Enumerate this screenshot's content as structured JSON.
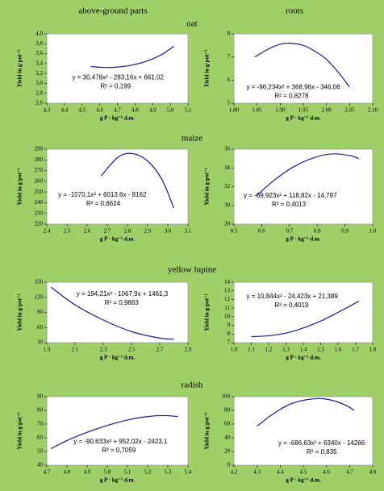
{
  "column_headers": [
    "above-ground parts",
    "roots"
  ],
  "row_labels": [
    "oat",
    "maize",
    "yellow lupine",
    "radish"
  ],
  "chart_data": [
    {
      "type": "line",
      "color": "#1a1a8c",
      "xlabel": "g P · kg⁻¹ d.m.",
      "ylabel": "Yield in g·pot⁻¹",
      "x": [
        4.55,
        4.65,
        4.75,
        4.85,
        4.95,
        5.02
      ],
      "values": [
        3.34,
        3.32,
        3.35,
        3.43,
        3.58,
        3.75
      ],
      "xlim": [
        4.3,
        5.1
      ],
      "ylim": [
        2.6,
        4.0
      ],
      "xticks": [
        {
          "value": 4.3,
          "label": "4,3"
        },
        {
          "value": 4.4,
          "label": "4,4"
        },
        {
          "value": 4.5,
          "label": "4,5"
        },
        {
          "value": 4.6,
          "label": "4,6"
        },
        {
          "value": 4.7,
          "label": "4,7"
        },
        {
          "value": 4.8,
          "label": "4,8"
        },
        {
          "value": 4.9,
          "label": "4,9"
        },
        {
          "value": 5.0,
          "label": "5,0"
        },
        {
          "value": 5.1,
          "label": "5,1"
        }
      ],
      "yticks": [
        {
          "value": 2.6,
          "label": "2,6"
        },
        {
          "value": 2.8,
          "label": "2,8"
        },
        {
          "value": 3.0,
          "label": "3,0"
        },
        {
          "value": 3.2,
          "label": "3,2"
        },
        {
          "value": 3.4,
          "label": "3,4"
        },
        {
          "value": 3.6,
          "label": "3,6"
        },
        {
          "value": 3.8,
          "label": "3,8"
        },
        {
          "value": 4.0,
          "label": "4,0"
        }
      ],
      "annotations": [
        "y = 30,478x² - 283,16x + 661,02",
        "R² = 0,199"
      ]
    },
    {
      "type": "line",
      "color": "#1a1a8c",
      "xlabel": "g P · kg⁻¹ d.m.",
      "ylabel": "Yield in g·pot⁻¹",
      "x": [
        1.845,
        1.875,
        1.9,
        1.92,
        1.95,
        1.975,
        2.0,
        2.025,
        2.05
      ],
      "values": [
        7.0,
        7.35,
        7.55,
        7.6,
        7.5,
        7.25,
        6.9,
        6.35,
        5.7
      ],
      "xlim": [
        1.8,
        2.1
      ],
      "ylim": [
        5,
        8
      ],
      "xticks": [
        {
          "value": 1.8,
          "label": "1.80"
        },
        1.85,
        {
          "value": 1.9,
          "label": "1.90"
        },
        1.95,
        {
          "value": 2.0,
          "label": "2.00"
        },
        2.05,
        {
          "value": 2.1,
          "label": "2.10"
        }
      ],
      "yticks": [
        5,
        6,
        7,
        8
      ],
      "annotations": [
        "y = -96,234x² + 368,96x - 346,08",
        "R² = 0,8278"
      ]
    },
    {
      "type": "line",
      "color": "#1a1a8c",
      "xlabel": "g P · kg⁻¹ d.m.",
      "ylabel": "Yield in g·pot⁻¹",
      "x": [
        2.67,
        2.75,
        2.82,
        2.9,
        2.97,
        3.03
      ],
      "values": [
        265,
        282,
        286,
        279,
        262,
        235
      ],
      "xlim": [
        2.4,
        3.1
      ],
      "ylim": [
        220,
        290
      ],
      "xticks": [
        2.4,
        2.5,
        2.6,
        2.7,
        2.8,
        2.9,
        {
          "value": 3.0,
          "label": "3.0"
        },
        3.1
      ],
      "yticks": [
        220,
        230,
        240,
        250,
        260,
        270,
        280,
        290
      ],
      "annotations": [
        "y = -1070,1x² + 6013,6x - 8162",
        "R² = 0,6624"
      ]
    },
    {
      "type": "line",
      "color": "#1a1a8c",
      "xlabel": "g P · kg⁻¹ d.m.",
      "ylabel": "Yield in g·pot⁻¹",
      "x": [
        0.58,
        0.65,
        0.72,
        0.8,
        0.86,
        0.92,
        0.95
      ],
      "values": [
        31,
        32.8,
        34.2,
        35.2,
        35.5,
        35.3,
        35
      ],
      "xlim": [
        0.5,
        1.0
      ],
      "ylim": [
        28,
        36
      ],
      "xticks": [
        0.5,
        0.6,
        0.7,
        0.8,
        0.9,
        {
          "value": 1.0,
          "label": "1.0"
        }
      ],
      "yticks": [
        28,
        30,
        32,
        34,
        36
      ],
      "annotations": [
        "y = -69,923x² + 118,82x - 14,797",
        "R² = 0,4013"
      ]
    },
    {
      "type": "line",
      "color": "#1a1a8c",
      "xlabel": "g P · kg⁻¹ d.m.",
      "ylabel": "Yield in g·pot⁻¹",
      "x": [
        1.93,
        2.1,
        2.3,
        2.5,
        2.7,
        2.8
      ],
      "values": [
        140,
        105,
        75,
        52,
        39,
        37
      ],
      "xlim": [
        1.9,
        2.9
      ],
      "ylim": [
        30,
        150
      ],
      "xticks": [
        1.9,
        2.1,
        2.3,
        2.5,
        2.7,
        2.9
      ],
      "yticks": [
        30,
        60,
        90,
        120,
        150
      ],
      "annotations": [
        "y = 194,21x² - 1067,9x + 1461,3",
        "R² = 0,9883"
      ]
    },
    {
      "type": "line",
      "color": "#1a1a8c",
      "xlabel": "g P · kg⁻¹ d.m.",
      "ylabel": "Yield in g·pot⁻¹",
      "x": [
        1.1,
        1.2,
        1.3,
        1.4,
        1.5,
        1.6,
        1.72
      ],
      "values": [
        7.7,
        7.8,
        8.1,
        8.7,
        9.5,
        10.5,
        11.8
      ],
      "xlim": [
        1.0,
        1.8
      ],
      "ylim": [
        7,
        14
      ],
      "xticks": [
        {
          "value": 1.0,
          "label": "1.0"
        },
        1.1,
        1.2,
        1.3,
        1.4,
        1.5,
        1.6,
        1.7,
        1.8
      ],
      "yticks": [
        7,
        8,
        9,
        10,
        11,
        12,
        13,
        14
      ],
      "annotations": [
        "y = 10,844x² - 24,423x + 21,389",
        "R² = 0,4019"
      ]
    },
    {
      "type": "line",
      "color": "#1a1a8c",
      "xlabel": "g P · kg⁻¹ d.m.",
      "ylabel": "Yield in g·pot⁻¹",
      "x": [
        4.72,
        4.8,
        4.9,
        5.0,
        5.1,
        5.2,
        5.28,
        5.35
      ],
      "values": [
        52,
        58,
        64,
        69,
        73,
        75.5,
        76.2,
        75.5
      ],
      "xlim": [
        4.7,
        5.4
      ],
      "ylim": [
        40,
        90
      ],
      "xticks": [
        4.7,
        4.8,
        4.9,
        {
          "value": 5.0,
          "label": "5.0"
        },
        5.1,
        5.2,
        5.3,
        5.4
      ],
      "yticks": [
        40,
        50,
        60,
        70,
        80,
        90
      ],
      "annotations": [
        "y = -90,633x² + 952,02x - 2423,1",
        "R² = 0,7059"
      ]
    },
    {
      "type": "line",
      "color": "#1a1a8c",
      "xlabel": "g P · kg⁻¹ d.m.",
      "ylabel": "Yield in g·pot⁻¹",
      "x": [
        4.3,
        4.37,
        4.45,
        4.55,
        4.62,
        4.68,
        4.72
      ],
      "values": [
        57,
        75,
        90,
        97,
        95,
        88,
        80
      ],
      "xlim": [
        4.2,
        4.8
      ],
      "ylim": [
        0,
        100
      ],
      "xticks": [
        4.2,
        4.3,
        4.4,
        4.5,
        4.6,
        4.7,
        4.8
      ],
      "yticks": [
        0,
        20,
        40,
        60,
        80,
        100
      ],
      "annotations": [
        "y = -686,63x² + 6340x - 14266",
        "R² = 0,835"
      ]
    }
  ]
}
